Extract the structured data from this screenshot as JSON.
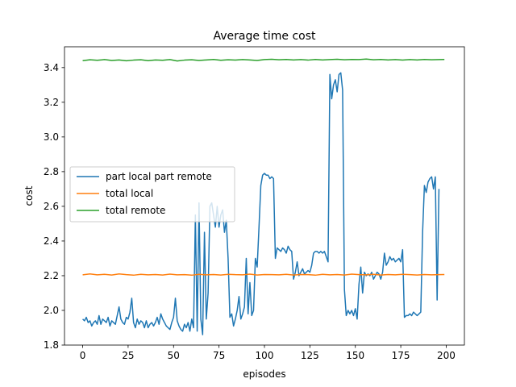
{
  "chart_data": {
    "type": "line",
    "title": "Average time cost",
    "xlabel": "episodes",
    "ylabel": "cost",
    "xlim": [
      -10,
      210
    ],
    "ylim": [
      1.8,
      3.52
    ],
    "xticks": [
      0,
      25,
      50,
      75,
      100,
      125,
      150,
      175,
      200
    ],
    "yticks": [
      1.8,
      2.0,
      2.2,
      2.4,
      2.6,
      2.8,
      3.0,
      3.2,
      3.4
    ],
    "ytick_labels": [
      "1.8",
      "2.0",
      "2.2",
      "2.4",
      "2.6",
      "2.8",
      "3.0",
      "3.2",
      "3.4"
    ],
    "grid": false,
    "legend_position": "center-left",
    "series": [
      {
        "name": "part local part remote",
        "color": "#1f77b4",
        "points": [
          [
            0,
            1.95
          ],
          [
            1,
            1.94
          ],
          [
            2,
            1.96
          ],
          [
            3,
            1.93
          ],
          [
            4,
            1.94
          ],
          [
            5,
            1.91
          ],
          [
            6,
            1.93
          ],
          [
            7,
            1.94
          ],
          [
            8,
            1.92
          ],
          [
            9,
            1.97
          ],
          [
            10,
            1.92
          ],
          [
            11,
            1.95
          ],
          [
            12,
            1.94
          ],
          [
            13,
            1.93
          ],
          [
            14,
            1.96
          ],
          [
            15,
            1.91
          ],
          [
            16,
            1.94
          ],
          [
            17,
            1.93
          ],
          [
            18,
            1.92
          ],
          [
            19,
            1.97
          ],
          [
            20,
            2.02
          ],
          [
            21,
            1.95
          ],
          [
            22,
            1.93
          ],
          [
            23,
            1.92
          ],
          [
            24,
            1.96
          ],
          [
            25,
            1.95
          ],
          [
            26,
            1.99
          ],
          [
            27,
            2.07
          ],
          [
            28,
            1.93
          ],
          [
            29,
            1.9
          ],
          [
            30,
            1.95
          ],
          [
            31,
            1.92
          ],
          [
            32,
            1.94
          ],
          [
            33,
            1.93
          ],
          [
            34,
            1.9
          ],
          [
            35,
            1.94
          ],
          [
            36,
            1.9
          ],
          [
            37,
            1.92
          ],
          [
            38,
            1.93
          ],
          [
            39,
            1.91
          ],
          [
            40,
            1.93
          ],
          [
            41,
            1.96
          ],
          [
            42,
            1.92
          ],
          [
            43,
            1.98
          ],
          [
            44,
            1.95
          ],
          [
            45,
            1.93
          ],
          [
            46,
            1.91
          ],
          [
            47,
            1.9
          ],
          [
            48,
            1.89
          ],
          [
            49,
            1.93
          ],
          [
            50,
            1.96
          ],
          [
            51,
            2.07
          ],
          [
            52,
            1.94
          ],
          [
            53,
            1.91
          ],
          [
            54,
            1.89
          ],
          [
            55,
            1.88
          ],
          [
            56,
            1.92
          ],
          [
            57,
            1.9
          ],
          [
            58,
            1.93
          ],
          [
            59,
            1.88
          ],
          [
            60,
            1.95
          ],
          [
            61,
            1.9
          ],
          [
            62,
            2.55
          ],
          [
            63,
            1.88
          ],
          [
            64,
            2.62
          ],
          [
            65,
            1.95
          ],
          [
            66,
            1.86
          ],
          [
            67,
            2.45
          ],
          [
            68,
            1.95
          ],
          [
            69,
            2.1
          ],
          [
            70,
            2.6
          ],
          [
            71,
            2.62
          ],
          [
            72,
            2.55
          ],
          [
            73,
            2.48
          ],
          [
            74,
            2.6
          ],
          [
            75,
            2.48
          ],
          [
            76,
            2.55
          ],
          [
            77,
            2.58
          ],
          [
            78,
            2.45
          ],
          [
            79,
            2.52
          ],
          [
            80,
            2.3
          ],
          [
            81,
            1.96
          ],
          [
            82,
            1.98
          ],
          [
            83,
            1.91
          ],
          [
            84,
            1.95
          ],
          [
            85,
            2.0
          ],
          [
            86,
            2.08
          ],
          [
            87,
            1.95
          ],
          [
            88,
            1.98
          ],
          [
            89,
            2.02
          ],
          [
            90,
            2.3
          ],
          [
            91,
            1.98
          ],
          [
            92,
            2.16
          ],
          [
            93,
            1.97
          ],
          [
            94,
            2.0
          ],
          [
            95,
            2.3
          ],
          [
            96,
            2.25
          ],
          [
            97,
            2.48
          ],
          [
            98,
            2.72
          ],
          [
            99,
            2.78
          ],
          [
            100,
            2.79
          ],
          [
            101,
            2.78
          ],
          [
            102,
            2.78
          ],
          [
            103,
            2.76
          ],
          [
            104,
            2.77
          ],
          [
            105,
            2.76
          ],
          [
            106,
            2.3
          ],
          [
            107,
            2.36
          ],
          [
            108,
            2.35
          ],
          [
            109,
            2.34
          ],
          [
            110,
            2.36
          ],
          [
            111,
            2.35
          ],
          [
            112,
            2.33
          ],
          [
            113,
            2.37
          ],
          [
            114,
            2.35
          ],
          [
            115,
            2.34
          ],
          [
            116,
            2.18
          ],
          [
            117,
            2.22
          ],
          [
            118,
            2.28
          ],
          [
            119,
            2.2
          ],
          [
            120,
            2.22
          ],
          [
            121,
            2.24
          ],
          [
            122,
            2.21
          ],
          [
            123,
            2.22
          ],
          [
            124,
            2.23
          ],
          [
            125,
            2.22
          ],
          [
            126,
            2.26
          ],
          [
            127,
            2.33
          ],
          [
            128,
            2.34
          ],
          [
            129,
            2.34
          ],
          [
            130,
            2.33
          ],
          [
            131,
            2.34
          ],
          [
            132,
            2.33
          ],
          [
            133,
            2.34
          ],
          [
            134,
            2.31
          ],
          [
            135,
            2.28
          ],
          [
            136,
            3.36
          ],
          [
            137,
            3.22
          ],
          [
            138,
            3.3
          ],
          [
            139,
            3.33
          ],
          [
            140,
            3.26
          ],
          [
            141,
            3.36
          ],
          [
            142,
            3.37
          ],
          [
            143,
            3.27
          ],
          [
            144,
            2.12
          ],
          [
            145,
            1.97
          ],
          [
            146,
            2.0
          ],
          [
            147,
            1.98
          ],
          [
            148,
            2.0
          ],
          [
            149,
            1.97
          ],
          [
            150,
            2.01
          ],
          [
            151,
            1.95
          ],
          [
            152,
            2.15
          ],
          [
            153,
            2.25
          ],
          [
            154,
            2.1
          ],
          [
            155,
            2.22
          ],
          [
            156,
            2.2
          ],
          [
            157,
            2.21
          ],
          [
            158,
            2.2
          ],
          [
            159,
            2.22
          ],
          [
            160,
            2.18
          ],
          [
            161,
            2.2
          ],
          [
            162,
            2.22
          ],
          [
            163,
            2.21
          ],
          [
            164,
            2.18
          ],
          [
            165,
            2.22
          ],
          [
            166,
            2.33
          ],
          [
            167,
            2.26
          ],
          [
            168,
            2.28
          ],
          [
            169,
            2.31
          ],
          [
            170,
            2.29
          ],
          [
            171,
            2.3
          ],
          [
            172,
            2.28
          ],
          [
            173,
            2.29
          ],
          [
            174,
            2.3
          ],
          [
            175,
            2.28
          ],
          [
            176,
            2.35
          ],
          [
            177,
            1.96
          ],
          [
            178,
            1.97
          ],
          [
            179,
            1.97
          ],
          [
            180,
            1.98
          ],
          [
            181,
            1.97
          ],
          [
            182,
            1.99
          ],
          [
            183,
            1.98
          ],
          [
            184,
            1.97
          ],
          [
            185,
            1.98
          ],
          [
            186,
            1.99
          ],
          [
            187,
            2.45
          ],
          [
            188,
            2.72
          ],
          [
            189,
            2.68
          ],
          [
            190,
            2.74
          ],
          [
            191,
            2.76
          ],
          [
            192,
            2.77
          ],
          [
            193,
            2.7
          ],
          [
            194,
            2.77
          ],
          [
            195,
            2.06
          ],
          [
            196,
            2.7
          ]
        ]
      },
      {
        "name": "total local",
        "color": "#ff7f0e",
        "points": [
          [
            0,
            2.205
          ],
          [
            4,
            2.21
          ],
          [
            8,
            2.205
          ],
          [
            12,
            2.208
          ],
          [
            16,
            2.204
          ],
          [
            20,
            2.21
          ],
          [
            24,
            2.206
          ],
          [
            28,
            2.203
          ],
          [
            32,
            2.208
          ],
          [
            36,
            2.205
          ],
          [
            40,
            2.207
          ],
          [
            44,
            2.204
          ],
          [
            48,
            2.209
          ],
          [
            52,
            2.205
          ],
          [
            56,
            2.206
          ],
          [
            60,
            2.203
          ],
          [
            64,
            2.208
          ],
          [
            68,
            2.205
          ],
          [
            72,
            2.207
          ],
          [
            76,
            2.204
          ],
          [
            80,
            2.208
          ],
          [
            84,
            2.206
          ],
          [
            88,
            2.205
          ],
          [
            92,
            2.209
          ],
          [
            96,
            2.204
          ],
          [
            100,
            2.207
          ],
          [
            104,
            2.206
          ],
          [
            108,
            2.205
          ],
          [
            112,
            2.208
          ],
          [
            116,
            2.204
          ],
          [
            120,
            2.207
          ],
          [
            124,
            2.206
          ],
          [
            128,
            2.203
          ],
          [
            132,
            2.208
          ],
          [
            136,
            2.205
          ],
          [
            140,
            2.207
          ],
          [
            144,
            2.204
          ],
          [
            148,
            2.209
          ],
          [
            152,
            2.206
          ],
          [
            156,
            2.205
          ],
          [
            160,
            2.208
          ],
          [
            164,
            2.204
          ],
          [
            168,
            2.207
          ],
          [
            172,
            2.205
          ],
          [
            176,
            2.208
          ],
          [
            180,
            2.206
          ],
          [
            184,
            2.204
          ],
          [
            188,
            2.207
          ],
          [
            192,
            2.205
          ],
          [
            196,
            2.206
          ],
          [
            199,
            2.207
          ]
        ]
      },
      {
        "name": "total remote",
        "color": "#2ca02c",
        "points": [
          [
            0,
            3.44
          ],
          [
            4,
            3.445
          ],
          [
            8,
            3.442
          ],
          [
            12,
            3.446
          ],
          [
            16,
            3.441
          ],
          [
            20,
            3.444
          ],
          [
            24,
            3.439
          ],
          [
            28,
            3.443
          ],
          [
            32,
            3.445
          ],
          [
            36,
            3.44
          ],
          [
            40,
            3.444
          ],
          [
            44,
            3.442
          ],
          [
            48,
            3.446
          ],
          [
            52,
            3.438
          ],
          [
            56,
            3.443
          ],
          [
            60,
            3.445
          ],
          [
            64,
            3.441
          ],
          [
            68,
            3.444
          ],
          [
            72,
            3.447
          ],
          [
            76,
            3.442
          ],
          [
            80,
            3.445
          ],
          [
            84,
            3.443
          ],
          [
            88,
            3.446
          ],
          [
            92,
            3.444
          ],
          [
            96,
            3.441
          ],
          [
            100,
            3.446
          ],
          [
            104,
            3.448
          ],
          [
            108,
            3.445
          ],
          [
            112,
            3.447
          ],
          [
            116,
            3.444
          ],
          [
            120,
            3.446
          ],
          [
            124,
            3.443
          ],
          [
            128,
            3.447
          ],
          [
            132,
            3.444
          ],
          [
            136,
            3.446
          ],
          [
            140,
            3.448
          ],
          [
            144,
            3.445
          ],
          [
            148,
            3.447
          ],
          [
            152,
            3.446
          ],
          [
            156,
            3.449
          ],
          [
            160,
            3.445
          ],
          [
            164,
            3.447
          ],
          [
            168,
            3.444
          ],
          [
            172,
            3.446
          ],
          [
            176,
            3.443
          ],
          [
            180,
            3.446
          ],
          [
            184,
            3.444
          ],
          [
            188,
            3.447
          ],
          [
            192,
            3.445
          ],
          [
            196,
            3.446
          ],
          [
            199,
            3.447
          ]
        ]
      }
    ]
  }
}
